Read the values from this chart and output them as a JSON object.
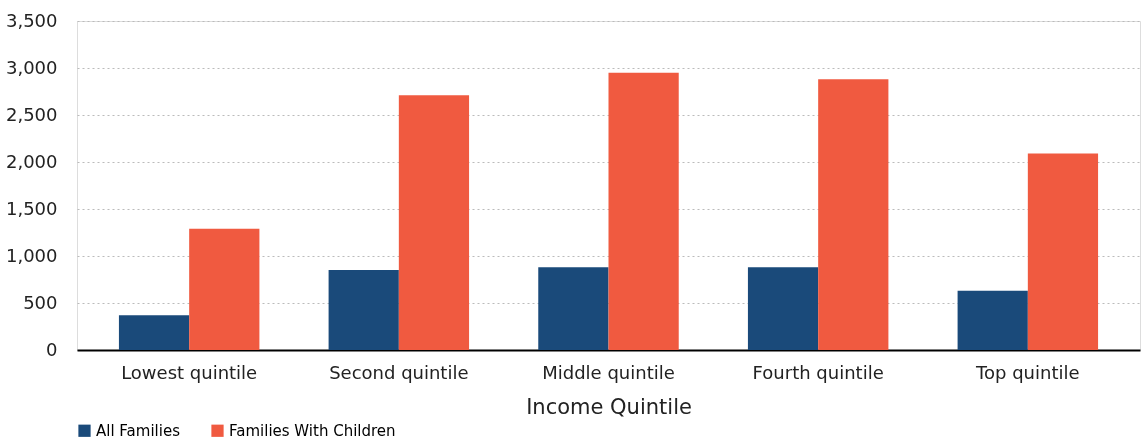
{
  "chart_data": {
    "type": "bar",
    "xlabel": "Income Quintile",
    "categories": [
      "Lowest quintile",
      "Second quintile",
      "Middle quintile",
      "Fourth quintile",
      "Top quintile"
    ],
    "series": [
      {
        "name": "All Families",
        "color": "#1a4a7a",
        "values": [
          370,
          850,
          880,
          880,
          630
        ]
      },
      {
        "name": "Families With Children",
        "color": "#f05a40",
        "values": [
          1290,
          2710,
          2950,
          2880,
          2090
        ]
      }
    ],
    "ylim": [
      0,
      3500
    ],
    "yticks": [
      0,
      500,
      {
        "value": 1000,
        "label": "1,000"
      },
      {
        "value": 1500,
        "label": "1,500"
      },
      {
        "value": 2000,
        "label": "2,000"
      },
      {
        "value": 2500,
        "label": "2,500"
      },
      {
        "value": 3000,
        "label": "3,000"
      },
      {
        "value": 3500,
        "label": "3,500"
      }
    ],
    "grid": "y",
    "legend": "bottom"
  }
}
